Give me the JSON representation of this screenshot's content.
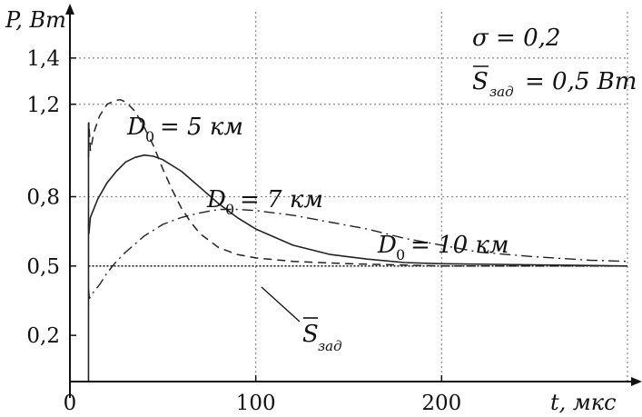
{
  "chart_data": {
    "type": "line",
    "xlabel": "t, мкс",
    "ylabel": "P, Вт",
    "xlim": [
      0,
      300
    ],
    "ylim": [
      0,
      1.6
    ],
    "xticks": [
      0,
      100,
      200
    ],
    "xtick_labels": [
      "0",
      "100",
      "200"
    ],
    "yticks": [
      0.2,
      0.5,
      0.8,
      1.2,
      1.4
    ],
    "ytick_labels": [
      "0,2",
      "0,5",
      "0,8",
      "1,2",
      "1,4"
    ],
    "xgrid": [
      100,
      200,
      300
    ],
    "ygrid": [
      0.8,
      1.2,
      1.4
    ],
    "grid": true,
    "params": {
      "sigma": "σ = 0,2",
      "s_zad_symbol": "S",
      "s_zad_sub": "зад",
      "s_zad_value": "= 0,5 Вт"
    },
    "series": [
      {
        "name": "D0 = 5 км",
        "label_main": "D",
        "label_sub": "0",
        "label_rest": "= 5 км",
        "style": "dashed",
        "x": [
          10,
          10.2,
          11,
          13,
          16,
          20,
          24,
          27,
          30,
          35,
          40,
          45,
          50,
          55,
          60,
          65,
          70,
          80,
          90,
          100,
          120,
          150,
          200,
          300
        ],
        "y": [
          0.97,
          1.12,
          1.0,
          1.08,
          1.15,
          1.2,
          1.215,
          1.22,
          1.21,
          1.17,
          1.1,
          1.02,
          0.92,
          0.83,
          0.75,
          0.69,
          0.64,
          0.58,
          0.55,
          0.535,
          0.52,
          0.51,
          0.5,
          0.5
        ]
      },
      {
        "name": "D0 = 7 км",
        "label_main": "D",
        "label_sub": "0",
        "label_rest": "= 7 км",
        "style": "solid",
        "x": [
          10,
          10.2,
          11,
          15,
          20,
          25,
          30,
          35,
          40,
          45,
          50,
          60,
          70,
          80,
          90,
          100,
          120,
          140,
          160,
          180,
          200,
          250,
          300
        ],
        "y": [
          0.68,
          0.64,
          0.71,
          0.79,
          0.86,
          0.91,
          0.95,
          0.97,
          0.98,
          0.975,
          0.96,
          0.91,
          0.84,
          0.77,
          0.71,
          0.66,
          0.59,
          0.55,
          0.53,
          0.515,
          0.51,
          0.505,
          0.5
        ]
      },
      {
        "name": "D0 = 10 км",
        "label_main": "D",
        "label_sub": "0",
        "label_rest": "= 10 км",
        "style": "dashdot",
        "x": [
          10,
          10.5,
          12,
          16,
          20,
          25,
          30,
          40,
          50,
          60,
          70,
          80,
          90,
          100,
          120,
          140,
          160,
          180,
          200,
          220,
          250,
          280,
          300
        ],
        "y": [
          0.4,
          0.36,
          0.38,
          0.42,
          0.47,
          0.52,
          0.56,
          0.63,
          0.68,
          0.71,
          0.73,
          0.745,
          0.745,
          0.74,
          0.72,
          0.69,
          0.66,
          0.62,
          0.59,
          0.56,
          0.54,
          0.525,
          0.52
        ]
      },
      {
        "name": "S зад",
        "label_main": "S",
        "label_sub": "зад",
        "style": "dotted",
        "x": [
          10,
          300
        ],
        "y": [
          0.5,
          0.5
        ]
      }
    ]
  }
}
